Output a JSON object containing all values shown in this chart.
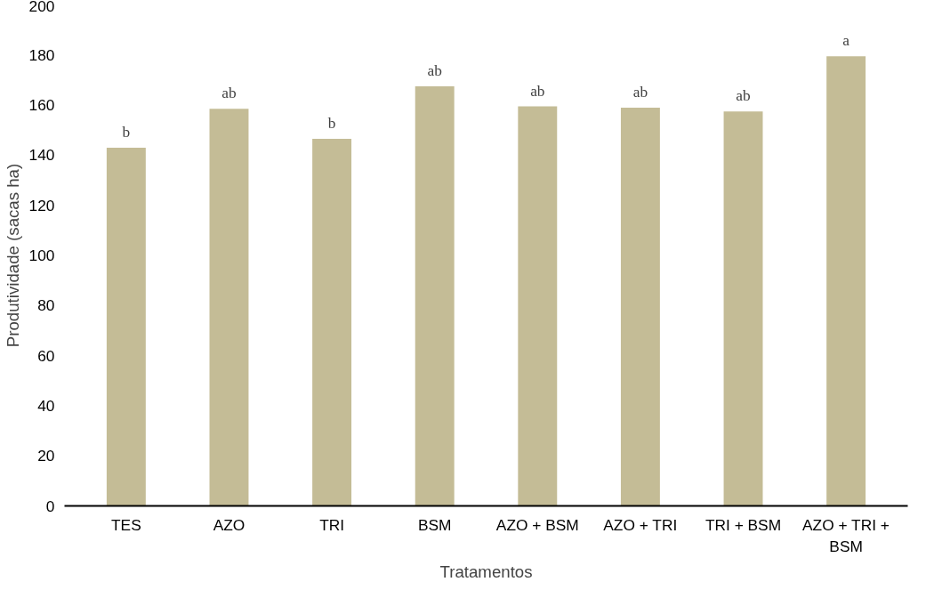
{
  "chart_data": {
    "type": "bar",
    "xlabel": "Tratamentos",
    "ylabel": "Produtividade (sacas ha)",
    "categories": [
      "TES",
      "AZO",
      "TRI",
      "BSM",
      "AZO + BSM",
      "AZO + TRI",
      "TRI + BSM",
      "AZO + TRI + BSM"
    ],
    "values": [
      143,
      158.5,
      146.5,
      167.5,
      159.5,
      159,
      157.5,
      179.5
    ],
    "value_labels": [
      "b",
      "ab",
      "b",
      "ab",
      "ab",
      "ab",
      "ab",
      "a"
    ],
    "color": "#c4bc96",
    "ylim": [
      0,
      200
    ],
    "yticks": [
      0,
      20,
      40,
      60,
      80,
      100,
      120,
      140,
      160,
      180,
      200
    ],
    "grid": false
  }
}
